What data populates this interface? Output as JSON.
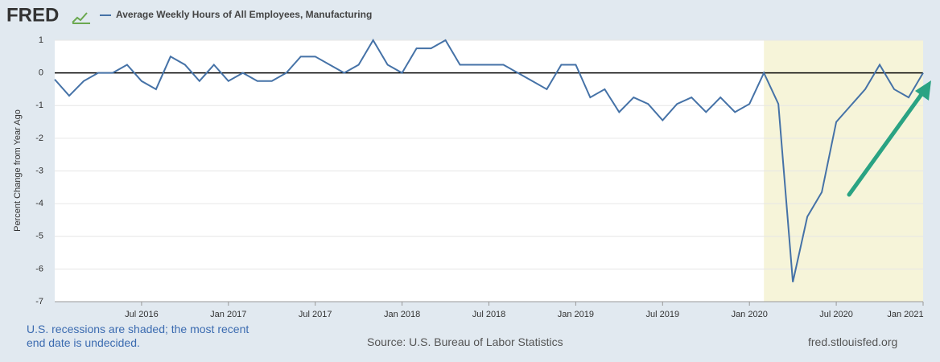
{
  "chart_data": {
    "type": "line",
    "logo": "FRED",
    "title": "Average Weekly Hours of All Employees, Manufacturing",
    "y_label": "Percent Change from Year Ago",
    "note": "U.S. recessions are shaded; the most recent end date is undecided.",
    "source": "Source: U.S. Bureau of Labor Statistics",
    "site": "fred.stlouisfed.org",
    "x": [
      "2016-01",
      "2016-02",
      "2016-03",
      "2016-04",
      "2016-05",
      "2016-06",
      "2016-07",
      "2016-08",
      "2016-09",
      "2016-10",
      "2016-11",
      "2016-12",
      "2017-01",
      "2017-02",
      "2017-03",
      "2017-04",
      "2017-05",
      "2017-06",
      "2017-07",
      "2017-08",
      "2017-09",
      "2017-10",
      "2017-11",
      "2017-12",
      "2018-01",
      "2018-02",
      "2018-03",
      "2018-04",
      "2018-05",
      "2018-06",
      "2018-07",
      "2018-08",
      "2018-09",
      "2018-10",
      "2018-11",
      "2018-12",
      "2019-01",
      "2019-02",
      "2019-03",
      "2019-04",
      "2019-05",
      "2019-06",
      "2019-07",
      "2019-08",
      "2019-09",
      "2019-10",
      "2019-11",
      "2019-12",
      "2020-01",
      "2020-02",
      "2020-03",
      "2020-04",
      "2020-05",
      "2020-06",
      "2020-07",
      "2020-08",
      "2020-09",
      "2020-10",
      "2020-11",
      "2020-12",
      "2021-01"
    ],
    "series": [
      {
        "name": "Average Weekly Hours of All Employees, Manufacturing",
        "color": "#4572a7",
        "values": [
          -0.2,
          -0.7,
          -0.25,
          0,
          0,
          0.25,
          -0.25,
          -0.5,
          0.5,
          0.25,
          -0.25,
          0.25,
          -0.25,
          0,
          -0.25,
          -0.25,
          0,
          0.5,
          0.5,
          0.25,
          0,
          0.25,
          1.0,
          0.25,
          0,
          0.75,
          0.75,
          1.0,
          0.25,
          0.25,
          0.25,
          0.25,
          0,
          -0.25,
          -0.5,
          0.25,
          0.25,
          -0.75,
          -0.5,
          -1.2,
          -0.75,
          -0.95,
          -1.45,
          -0.95,
          -0.75,
          -1.2,
          -0.75,
          -1.2,
          -0.95,
          0,
          -0.95,
          -6.4,
          -4.4,
          -3.65,
          -1.5,
          -1.0,
          -0.5,
          0.25,
          -0.5,
          -0.75,
          0
        ]
      }
    ],
    "xlim": [
      "2016-01",
      "2021-01"
    ],
    "xticks": [
      {
        "value": "2016-07",
        "label": "Jul 2016"
      },
      {
        "value": "2017-01",
        "label": "Jan 2017"
      },
      {
        "value": "2017-07",
        "label": "Jul 2017"
      },
      {
        "value": "2018-01",
        "label": "Jan 2018"
      },
      {
        "value": "2018-07",
        "label": "Jul 2018"
      },
      {
        "value": "2019-01",
        "label": "Jan 2019"
      },
      {
        "value": "2019-07",
        "label": "Jul 2019"
      },
      {
        "value": "2020-01",
        "label": "Jan 2020"
      },
      {
        "value": "2020-07",
        "label": "Jul 2020"
      },
      {
        "value": "2021-01",
        "label": "Jan 2021"
      }
    ],
    "ylim": [
      -7,
      1
    ],
    "yticks": [
      -7,
      -6,
      -5,
      -4,
      -3,
      -2,
      -1,
      0,
      1
    ],
    "grid": true,
    "recession": [
      "2020-02",
      "2021-01"
    ],
    "recession_color": "#f6f4d9"
  }
}
